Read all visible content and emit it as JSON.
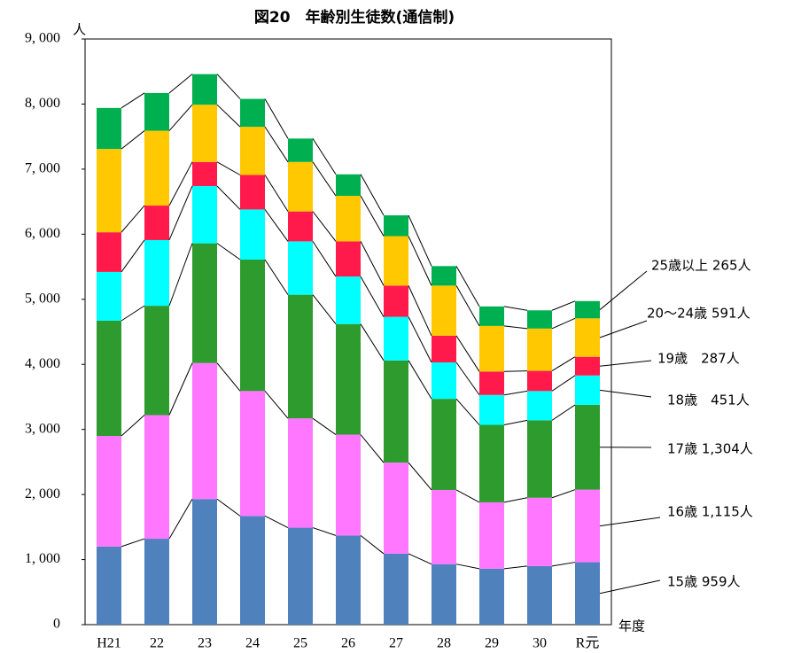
{
  "chart_data": {
    "type": "stacked_bar",
    "title": "図20　年齢別生徒数(通信制)",
    "y_unit": "人",
    "x_unit": "年度",
    "categories": [
      "H21",
      "22",
      "23",
      "24",
      "25",
      "26",
      "27",
      "28",
      "29",
      "30",
      "R元"
    ],
    "series": [
      {
        "label": "15歳 959人",
        "color": "#4f81bd",
        "values": [
          1200,
          1320,
          1930,
          1670,
          1490,
          1370,
          1090,
          930,
          860,
          900,
          959
        ]
      },
      {
        "label": "16歳 1,115人",
        "color": "#ff77ff",
        "values": [
          1700,
          1900,
          2090,
          1920,
          1680,
          1550,
          1400,
          1140,
          1020,
          1050,
          1115
        ]
      },
      {
        "label": "17歳 1,304人",
        "color": "#2e9b2e",
        "values": [
          1770,
          1680,
          1840,
          2020,
          1900,
          1700,
          1570,
          1400,
          1190,
          1190,
          1304
        ]
      },
      {
        "label": "18歳　451人",
        "color": "#00ffff",
        "values": [
          750,
          1010,
          880,
          770,
          820,
          730,
          670,
          560,
          460,
          450,
          451
        ]
      },
      {
        "label": "19歳　287人",
        "color": "#ff1a4b",
        "values": [
          610,
          530,
          370,
          530,
          460,
          540,
          480,
          410,
          360,
          310,
          287
        ]
      },
      {
        "label": "20～24歳 591人",
        "color": "#ffc800",
        "values": [
          1280,
          1150,
          880,
          740,
          760,
          700,
          760,
          770,
          700,
          650,
          591
        ]
      },
      {
        "label": "25歳以上 265人",
        "color": "#00b050",
        "values": [
          630,
          580,
          470,
          430,
          360,
          330,
          320,
          300,
          300,
          280,
          265
        ]
      }
    ],
    "ylim": [
      0,
      9000
    ],
    "yticks": [
      0,
      {
        "value": 1000,
        "label": "1, 000"
      },
      {
        "value": 2000,
        "label": "2, 000"
      },
      {
        "value": 3000,
        "label": "3, 000"
      },
      {
        "value": 4000,
        "label": "4, 000"
      },
      {
        "value": 5000,
        "label": "5, 000"
      },
      {
        "value": 6000,
        "label": "6, 000"
      },
      {
        "value": 7000,
        "label": "7, 000"
      },
      {
        "value": 8000,
        "label": "8, 000"
      },
      {
        "value": 9000,
        "label": "9, 000"
      }
    ]
  }
}
